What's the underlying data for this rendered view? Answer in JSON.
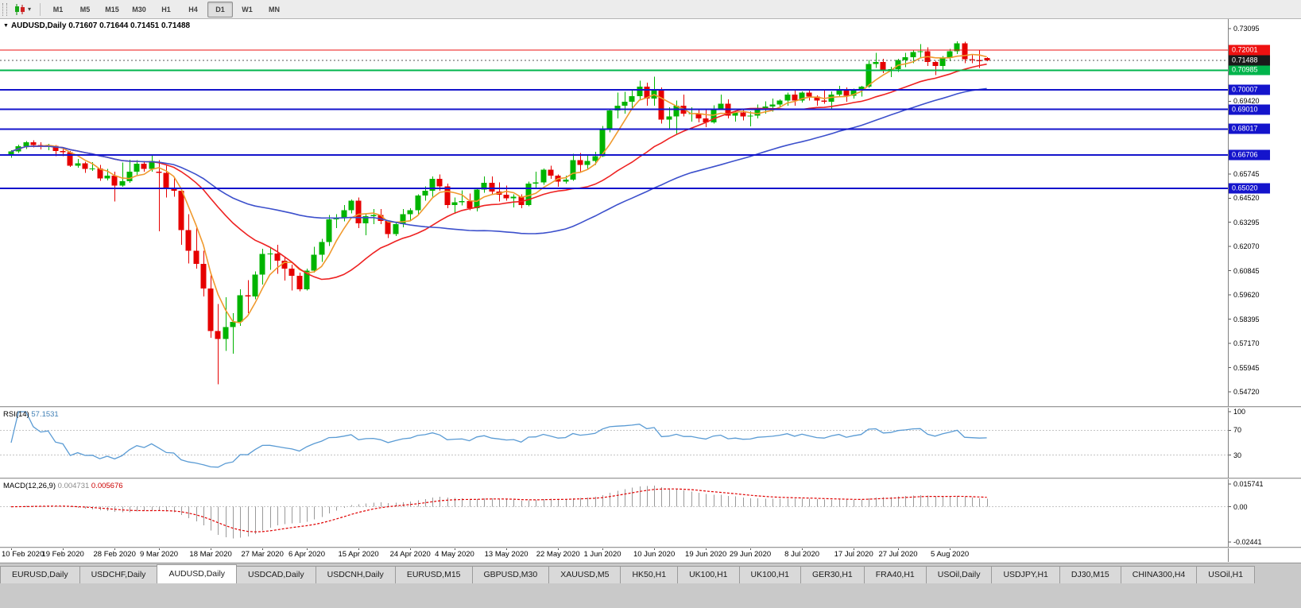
{
  "toolbar": {
    "periods": [
      "M1",
      "M5",
      "M15",
      "M30",
      "H1",
      "H4",
      "D1",
      "W1",
      "MN"
    ],
    "active_period": "D1"
  },
  "chart": {
    "symbol_period": "AUDUSD,Daily",
    "ohlc_text": "0.71607 0.71644 0.71451 0.71488"
  },
  "chart_data": {
    "type": "candlestick",
    "symbol": "AUDUSD",
    "timeframe": "Daily",
    "ohlc_current": {
      "open": 0.71607,
      "high": 0.71644,
      "low": 0.71451,
      "close": 0.71488
    },
    "y_axis": {
      "max": 0.73095,
      "min": 0.5472,
      "step": 0.01225,
      "decimals": 5
    },
    "x_labels": [
      "10 Feb 2020",
      "19 Feb 2020",
      "28 Feb 2020",
      "9 Mar 2020",
      "18 Mar 2020",
      "27 Mar 2020",
      "6 Apr 2020",
      "15 Apr 2020",
      "24 Apr 2020",
      "4 May 2020",
      "13 May 2020",
      "22 May 2020",
      "1 Jun 2020",
      "10 Jun 2020",
      "19 Jun 2020",
      "29 Jun 2020",
      "8 Jul 2020",
      "17 Jul 2020",
      "27 Jul 2020",
      "5 Aug 2020"
    ],
    "x_label_indices": [
      0,
      7,
      14,
      20,
      27,
      34,
      40,
      47,
      54,
      60,
      67,
      74,
      80,
      87,
      94,
      100,
      107,
      114,
      120,
      127
    ],
    "candles": [
      [
        0.667,
        0.6695,
        0.6657,
        0.6688
      ],
      [
        0.6688,
        0.6722,
        0.668,
        0.6715
      ],
      [
        0.6715,
        0.674,
        0.67,
        0.6735
      ],
      [
        0.6735,
        0.6745,
        0.6708,
        0.672
      ],
      [
        0.672,
        0.6735,
        0.6698,
        0.6712
      ],
      [
        0.6712,
        0.6726,
        0.6694,
        0.6716
      ],
      [
        0.6716,
        0.6721,
        0.6665,
        0.669
      ],
      [
        0.669,
        0.6706,
        0.6664,
        0.6684
      ],
      [
        0.6684,
        0.6691,
        0.661,
        0.6616
      ],
      [
        0.6616,
        0.6651,
        0.6605,
        0.6628
      ],
      [
        0.6628,
        0.6636,
        0.658,
        0.66
      ],
      [
        0.66,
        0.6634,
        0.659,
        0.6601
      ],
      [
        0.6601,
        0.662,
        0.654,
        0.6551
      ],
      [
        0.6551,
        0.66,
        0.6542,
        0.6566
      ],
      [
        0.6566,
        0.6586,
        0.6435,
        0.6515
      ],
      [
        0.6515,
        0.6631,
        0.651,
        0.6537
      ],
      [
        0.6537,
        0.6646,
        0.653,
        0.6585
      ],
      [
        0.6585,
        0.6645,
        0.657,
        0.6625
      ],
      [
        0.6625,
        0.6641,
        0.6585,
        0.66
      ],
      [
        0.66,
        0.667,
        0.6586,
        0.664
      ],
      [
        0.6585,
        0.6645,
        0.6285,
        0.658
      ],
      [
        0.658,
        0.6616,
        0.6455,
        0.65
      ],
      [
        0.65,
        0.6556,
        0.646,
        0.649
      ],
      [
        0.649,
        0.6501,
        0.6215,
        0.629
      ],
      [
        0.629,
        0.6371,
        0.6121,
        0.6185
      ],
      [
        0.6185,
        0.6306,
        0.6095,
        0.612
      ],
      [
        0.612,
        0.6186,
        0.5955,
        0.5995
      ],
      [
        0.5995,
        0.6061,
        0.5745,
        0.578
      ],
      [
        0.578,
        0.5916,
        0.551,
        0.574
      ],
      [
        0.574,
        0.5951,
        0.568,
        0.58
      ],
      [
        0.58,
        0.5871,
        0.5665,
        0.5825
      ],
      [
        0.5825,
        0.5991,
        0.5805,
        0.596
      ],
      [
        0.596,
        0.6036,
        0.587,
        0.5955
      ],
      [
        0.5955,
        0.6081,
        0.594,
        0.6065
      ],
      [
        0.6065,
        0.6196,
        0.6015,
        0.617
      ],
      [
        0.617,
        0.6201,
        0.609,
        0.6172
      ],
      [
        0.6172,
        0.6216,
        0.607,
        0.6135
      ],
      [
        0.6135,
        0.6151,
        0.6035,
        0.6095
      ],
      [
        0.6095,
        0.6116,
        0.5985,
        0.606
      ],
      [
        0.606,
        0.6076,
        0.598,
        0.5991
      ],
      [
        0.5991,
        0.6096,
        0.5985,
        0.6085
      ],
      [
        0.6085,
        0.6206,
        0.6075,
        0.6165
      ],
      [
        0.6165,
        0.6246,
        0.613,
        0.623
      ],
      [
        0.623,
        0.6366,
        0.621,
        0.6345
      ],
      [
        0.6345,
        0.6371,
        0.63,
        0.6351
      ],
      [
        0.6351,
        0.6416,
        0.6335,
        0.639
      ],
      [
        0.639,
        0.6446,
        0.6375,
        0.644
      ],
      [
        0.644,
        0.6456,
        0.63,
        0.6325
      ],
      [
        0.6325,
        0.6371,
        0.6265,
        0.636
      ],
      [
        0.636,
        0.6396,
        0.632,
        0.6366
      ],
      [
        0.6366,
        0.6396,
        0.632,
        0.6336
      ],
      [
        0.6336,
        0.6341,
        0.625,
        0.627
      ],
      [
        0.627,
        0.6331,
        0.626,
        0.632
      ],
      [
        0.632,
        0.6396,
        0.6305,
        0.637
      ],
      [
        0.637,
        0.6401,
        0.6335,
        0.639
      ],
      [
        0.639,
        0.6471,
        0.637,
        0.6465
      ],
      [
        0.6465,
        0.6511,
        0.644,
        0.649
      ],
      [
        0.649,
        0.6561,
        0.646,
        0.655
      ],
      [
        0.655,
        0.6571,
        0.649,
        0.6511
      ],
      [
        0.6511,
        0.6526,
        0.64,
        0.6416
      ],
      [
        0.6416,
        0.6456,
        0.6372,
        0.643
      ],
      [
        0.643,
        0.6491,
        0.6415,
        0.6436
      ],
      [
        0.6436,
        0.6476,
        0.639,
        0.6401
      ],
      [
        0.6401,
        0.6506,
        0.6385,
        0.6495
      ],
      [
        0.6495,
        0.6561,
        0.648,
        0.653
      ],
      [
        0.653,
        0.6561,
        0.647,
        0.6486
      ],
      [
        0.6486,
        0.6531,
        0.6435,
        0.647
      ],
      [
        0.647,
        0.6516,
        0.644,
        0.6451
      ],
      [
        0.6451,
        0.6471,
        0.6405,
        0.646
      ],
      [
        0.646,
        0.6471,
        0.64,
        0.6416
      ],
      [
        0.6416,
        0.6536,
        0.641,
        0.6525
      ],
      [
        0.6525,
        0.6586,
        0.6505,
        0.6531
      ],
      [
        0.6531,
        0.6601,
        0.652,
        0.6595
      ],
      [
        0.6595,
        0.6616,
        0.655,
        0.6566
      ],
      [
        0.6566,
        0.6571,
        0.651,
        0.6535
      ],
      [
        0.6535,
        0.6566,
        0.6525,
        0.6546
      ],
      [
        0.6546,
        0.6676,
        0.654,
        0.6645
      ],
      [
        0.6645,
        0.6681,
        0.658,
        0.662
      ],
      [
        0.662,
        0.6666,
        0.66,
        0.664
      ],
      [
        0.664,
        0.6686,
        0.662,
        0.6665
      ],
      [
        0.6665,
        0.6816,
        0.666,
        0.68
      ],
      [
        0.68,
        0.6901,
        0.6785,
        0.6895
      ],
      [
        0.6895,
        0.6986,
        0.6855,
        0.692
      ],
      [
        0.692,
        0.6989,
        0.688,
        0.694
      ],
      [
        0.694,
        0.7001,
        0.69,
        0.6968
      ],
      [
        0.6968,
        0.7046,
        0.6945,
        0.7015
      ],
      [
        0.7015,
        0.7036,
        0.692,
        0.6955
      ],
      [
        0.6955,
        0.7066,
        0.692,
        0.7
      ],
      [
        0.7,
        0.7011,
        0.683,
        0.685
      ],
      [
        0.685,
        0.6911,
        0.68,
        0.6865
      ],
      [
        0.6865,
        0.6946,
        0.6775,
        0.692
      ],
      [
        0.692,
        0.6976,
        0.6865,
        0.688
      ],
      [
        0.688,
        0.6911,
        0.684,
        0.6881
      ],
      [
        0.6881,
        0.6906,
        0.6835,
        0.6855
      ],
      [
        0.6855,
        0.6906,
        0.681,
        0.6836
      ],
      [
        0.6836,
        0.6921,
        0.683,
        0.6905
      ],
      [
        0.6905,
        0.6976,
        0.69,
        0.693
      ],
      [
        0.693,
        0.6951,
        0.6855,
        0.687
      ],
      [
        0.687,
        0.6896,
        0.684,
        0.6885
      ],
      [
        0.6885,
        0.6901,
        0.6845,
        0.6866
      ],
      [
        0.6866,
        0.6891,
        0.6815,
        0.687
      ],
      [
        0.687,
        0.6926,
        0.6855,
        0.6905
      ],
      [
        0.6905,
        0.6941,
        0.688,
        0.6915
      ],
      [
        0.6915,
        0.6956,
        0.689,
        0.6925
      ],
      [
        0.6925,
        0.6951,
        0.691,
        0.6945
      ],
      [
        0.6945,
        0.6986,
        0.692,
        0.6975
      ],
      [
        0.6975,
        0.6996,
        0.692,
        0.6945
      ],
      [
        0.6945,
        0.6991,
        0.6935,
        0.6985
      ],
      [
        0.6985,
        0.7001,
        0.6945,
        0.6965
      ],
      [
        0.6965,
        0.6971,
        0.692,
        0.6945
      ],
      [
        0.6945,
        0.7001,
        0.693,
        0.694
      ],
      [
        0.694,
        0.6991,
        0.6905,
        0.6975
      ],
      [
        0.6975,
        0.7021,
        0.6965,
        0.7
      ],
      [
        0.7,
        0.7011,
        0.694,
        0.697
      ],
      [
        0.697,
        0.7006,
        0.6955,
        0.6995
      ],
      [
        0.6995,
        0.7021,
        0.6965,
        0.7015
      ],
      [
        0.7015,
        0.7151,
        0.701,
        0.713
      ],
      [
        0.713,
        0.7186,
        0.711,
        0.714
      ],
      [
        0.714,
        0.7156,
        0.7085,
        0.7095
      ],
      [
        0.7095,
        0.7116,
        0.7065,
        0.7105
      ],
      [
        0.7105,
        0.7156,
        0.709,
        0.715
      ],
      [
        0.715,
        0.7186,
        0.7115,
        0.7165
      ],
      [
        0.7165,
        0.7201,
        0.7135,
        0.719
      ],
      [
        0.719,
        0.7231,
        0.716,
        0.7195
      ],
      [
        0.7195,
        0.7216,
        0.712,
        0.714
      ],
      [
        0.714,
        0.7146,
        0.7075,
        0.712
      ],
      [
        0.712,
        0.7171,
        0.71,
        0.716
      ],
      [
        0.716,
        0.7206,
        0.7145,
        0.7195
      ],
      [
        0.7195,
        0.7246,
        0.718,
        0.7235
      ],
      [
        0.7235,
        0.7243,
        0.7135,
        0.7155
      ],
      [
        0.7155,
        0.7181,
        0.7135,
        0.715
      ],
      [
        0.715,
        0.7201,
        0.711,
        0.7145
      ],
      [
        0.71607,
        0.71644,
        0.71451,
        0.71488
      ]
    ],
    "h_lines": [
      {
        "value": 0.72001,
        "label": "0.72001",
        "color": "#ee1111",
        "width": 1,
        "role": "resistance"
      },
      {
        "value": 0.70985,
        "label": "0.70985",
        "color": "#00b44b",
        "width": 2,
        "role": "support"
      },
      {
        "value": 0.70007,
        "label": "0.70007",
        "color": "#1414cc",
        "width": 2,
        "role": "support"
      },
      {
        "value": 0.6901,
        "label": "0.69010",
        "color": "#1414cc",
        "width": 2,
        "role": "support"
      },
      {
        "value": 0.68017,
        "label": "0.68017",
        "color": "#1414cc",
        "width": 2,
        "role": "support"
      },
      {
        "value": 0.66706,
        "label": "0.66706",
        "color": "#1414cc",
        "width": 2,
        "role": "support"
      },
      {
        "value": 0.6502,
        "label": "0.65020",
        "color": "#1414cc",
        "width": 2,
        "role": "support"
      }
    ],
    "current_price": {
      "value": 0.71488,
      "label": "0.71488",
      "badge_color": "#1a1a1a"
    },
    "moving_averages": [
      {
        "period": 5,
        "color": "#f09a2e"
      },
      {
        "period": 20,
        "color": "#ee2222"
      },
      {
        "period": 50,
        "color": "#3c50cc"
      }
    ],
    "indicators": {
      "rsi": {
        "label": "RSI(14)",
        "value": "57.1531",
        "period": 14,
        "levels": [
          70,
          30
        ],
        "axis_labels": [
          "100",
          "70",
          "30"
        ],
        "color": "#5a9bd4"
      },
      "macd": {
        "label": "MACD(12,26,9)",
        "value_main": "0.004731",
        "value_signal": "0.005676",
        "fast": 12,
        "slow": 26,
        "signal": 9,
        "axis_max": "0.015741",
        "axis_zero": "0.00",
        "axis_min": "-0.02441"
      }
    },
    "colors": {
      "bull": "#00b400",
      "bear": "#e60000",
      "background": "#ffffff",
      "axis_text": "#000000",
      "grid_dash": "#c4c4c4",
      "macd_hist": "#9a9a9a",
      "macd_signal": "#e00000"
    }
  },
  "tabs": {
    "items": [
      "EURUSD,Daily",
      "USDCHF,Daily",
      "AUDUSD,Daily",
      "USDCAD,Daily",
      "USDCNH,Daily",
      "EURUSD,M15",
      "GBPUSD,M30",
      "XAUUSD,M5",
      "HK50,H1",
      "UK100,H1",
      "UK100,H1",
      "GER30,H1",
      "FRA40,H1",
      "USOil,Daily",
      "USDJPY,H1",
      "DJ30,M15",
      "CHINA300,H4",
      "USOil,H1"
    ],
    "active_index": 2
  }
}
